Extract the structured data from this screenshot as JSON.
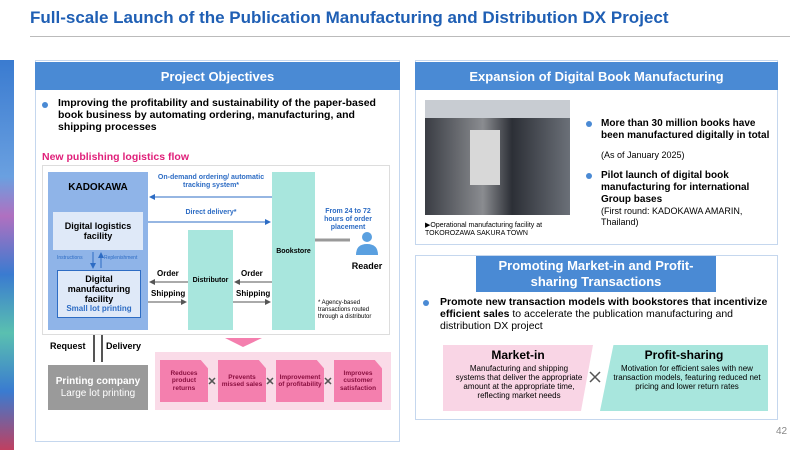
{
  "header": {
    "title": "Full-scale Launch of the Publication Manufacturing and Distribution DX Project",
    "page_number": "42"
  },
  "objectives": {
    "heading": "Project Objectives",
    "bullet": "Improving the profitability and sustainability of the paper-based book business by automating ordering, manufacturing, and shipping processes",
    "flow": {
      "title": "New publishing logistics flow",
      "kadokawa": "KADOKAWA",
      "logistics_facility": "Digital logistics facility",
      "instructions": "Instructions",
      "replenishment": "Replenishment",
      "manufacturing_facility": "Digital manufacturing facility",
      "small_lot": "Small lot printing",
      "ondemand": "On-demand ordering/ automatic tracking system*",
      "direct_delivery": "Direct delivery*",
      "lead_time": "From 24 to 72 hours of order placement",
      "bookstore": "Bookstore",
      "reader": "Reader",
      "distributor": "Distributor",
      "order_left": "Order",
      "order_right": "Order",
      "shipping_left": "Shipping",
      "shipping_right": "Shipping",
      "note": "* Agency-based transactions routed through a distributor",
      "request": "Request",
      "delivery": "Delivery",
      "printing_company": "Printing company",
      "large_lot": "Large lot printing"
    },
    "outcomes": [
      "Reduces product returns",
      "Prevents missed sales",
      "Improvement of profitability",
      "Improves customer satisfaction"
    ]
  },
  "expansion": {
    "heading": "Expansion of Digital Book Manufacturing",
    "photo_caption": "▶Operational manufacturing facility at TOKOROZAWA SAKURA TOWN",
    "bullets": [
      {
        "text": "More than 30 million books have been manufactured digitally in total",
        "note": "(As of January 2025)"
      },
      {
        "text": "Pilot launch of digital book manufacturing for international Group bases",
        "note": "(First round: KADOKAWA AMARIN, Thailand)"
      }
    ]
  },
  "market_in": {
    "heading": "Promoting Market-in and Profit-sharing Transactions",
    "bullet_bold": "Promote new transaction models with bookstores that incentivize efficient sales",
    "bullet_rest": " to accelerate the publication manufacturing and distribution DX project",
    "cards": [
      {
        "title": "Market-in",
        "text": "Manufacturing and shipping systems that deliver the appropriate amount at the appropriate time, reflecting market needs"
      },
      {
        "title": "Profit-sharing",
        "text": "Motivation for efficient sales with new transaction models, featuring reduced net pricing and lower return rates"
      }
    ]
  }
}
